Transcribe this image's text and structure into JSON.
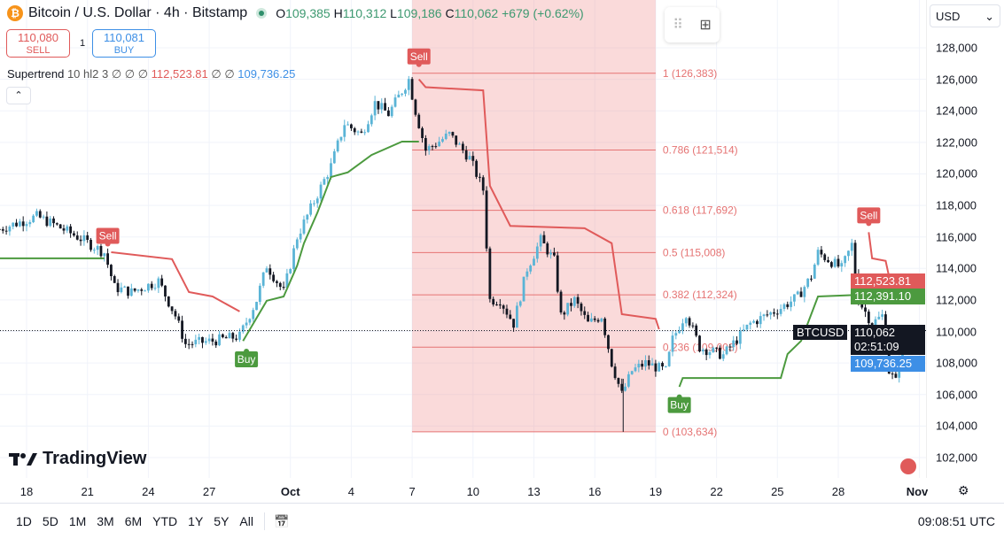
{
  "header": {
    "symbol_title": "Bitcoin / U.S. Dollar · 4h · Bitstamp",
    "open_label": "O",
    "open": "109,385",
    "high_label": "H",
    "high": "110,312",
    "low_label": "L",
    "low": "109,186",
    "close_label": "C",
    "close": "110,062",
    "change": "+679 (+0.62%)",
    "logo_glyph": "₿"
  },
  "trade": {
    "sell_price": "110,080",
    "sell_label": "SELL",
    "spread": "1",
    "buy_price": "110,081",
    "buy_label": "BUY"
  },
  "indicator": {
    "name": "Supertrend",
    "params": "10 hl2 3",
    "na": "∅ ∅ ∅",
    "upper": "112,523.81",
    "na2": "∅ ∅",
    "lower": "109,736.25",
    "collapse_glyph": "⌃"
  },
  "widget": {
    "drag_glyph": "⠿",
    "add_glyph": "⊞"
  },
  "currency": {
    "label": "USD",
    "caret": "⌄"
  },
  "price_axis": {
    "labels": [
      "128,000",
      "126,000",
      "124,000",
      "122,000",
      "120,000",
      "118,000",
      "116,000",
      "114,000",
      "112,000",
      "110,000",
      "108,000",
      "106,000",
      "104,000",
      "102,000"
    ],
    "tags": {
      "supertrend_upper": "112,523.81",
      "supertrend_lower_prev": "112,391.10",
      "last_price": "110,062",
      "countdown": "02:51:09",
      "supertrend_lower": "109,736.25",
      "symbol": "BTCUSD"
    }
  },
  "time_axis": {
    "labels": [
      {
        "t": "18",
        "d": "09-18 00"
      },
      {
        "t": "21",
        "d": "09-21 00"
      },
      {
        "t": "24",
        "d": "09-24 00"
      },
      {
        "t": "27",
        "d": "09-27 00"
      },
      {
        "t": "Oct",
        "d": "10-01 00"
      },
      {
        "t": "4",
        "d": "10-04 00"
      },
      {
        "t": "7",
        "d": "10-07 00"
      },
      {
        "t": "10",
        "d": "10-10 00"
      },
      {
        "t": "13",
        "d": "10-13 00"
      },
      {
        "t": "16",
        "d": "10-16 00"
      },
      {
        "t": "19",
        "d": "10-19 00"
      },
      {
        "t": "22",
        "d": "10-22 00"
      },
      {
        "t": "25",
        "d": "10-25 00"
      },
      {
        "t": "28",
        "d": "10-28 00"
      },
      {
        "t": "Nov",
        "d": "11-01 00"
      }
    ],
    "settings_glyph": "⚙"
  },
  "bottom_bar": {
    "ranges": [
      "1D",
      "5D",
      "1M",
      "3M",
      "6M",
      "YTD",
      "1Y",
      "5Y",
      "All"
    ],
    "goto_glyph": "📅",
    "clock": "09:08:51 UTC"
  },
  "branding": {
    "logo_text": "TradingView"
  },
  "colors": {
    "up": "#5ab4d6",
    "down": "#131722",
    "bear": "#e05a5a",
    "bull": "#4c9a3f",
    "fib": "#e57373",
    "fib_fill": "rgba(240,150,150,0.35)",
    "blue": "#3d8fe6"
  },
  "chart_data": {
    "type": "candlestick",
    "price_range": [
      102000,
      128000
    ],
    "price_path": [
      [
        "09-16 16",
        116500
      ],
      [
        "09-18 12",
        117300
      ],
      [
        "09-19 08",
        116800
      ],
      [
        "09-20 16",
        115900
      ],
      [
        "09-21 20",
        115000
      ],
      [
        "09-22 08",
        112800
      ],
      [
        "09-23 04",
        112500
      ],
      [
        "09-24 12",
        113200
      ],
      [
        "09-25 08",
        111000
      ],
      [
        "09-25 20",
        109200
      ],
      [
        "09-27 04",
        109400
      ],
      [
        "09-28 12",
        109700
      ],
      [
        "09-29 08",
        112000
      ],
      [
        "09-29 20",
        114200
      ],
      [
        "09-30 16",
        112500
      ],
      [
        "10-01 08",
        116000
      ],
      [
        "10-02 08",
        118700
      ],
      [
        "10-03 00",
        120500
      ],
      [
        "10-03 16",
        123200
      ],
      [
        "10-04 12",
        122500
      ],
      [
        "10-05 04",
        124500
      ],
      [
        "10-05 20",
        123800
      ],
      [
        "10-06 20",
        126000
      ],
      [
        "10-07 04",
        124000
      ],
      [
        "10-07 16",
        121500
      ],
      [
        "10-08 20",
        122500
      ],
      [
        "10-09 20",
        121000
      ],
      [
        "10-10 12",
        119000
      ],
      [
        "10-10 20",
        112000
      ],
      [
        "10-11 08",
        112000
      ],
      [
        "10-12 00",
        110500
      ],
      [
        "10-12 16",
        114000
      ],
      [
        "10-13 08",
        115800
      ],
      [
        "10-14 00",
        114500
      ],
      [
        "10-14 08",
        111000
      ],
      [
        "10-15 00",
        112000
      ],
      [
        "10-15 16",
        110500
      ],
      [
        "10-16 08",
        111000
      ],
      [
        "10-16 20",
        108000
      ],
      [
        "10-17 08",
        106000
      ],
      [
        "10-17 20",
        107500
      ],
      [
        "10-18 12",
        108000
      ],
      [
        "10-19 12",
        107500
      ],
      [
        "10-19 20",
        109500
      ],
      [
        "10-20 12",
        111200
      ],
      [
        "10-21 04",
        109000
      ],
      [
        "10-22 08",
        108500
      ],
      [
        "10-23 16",
        110500
      ],
      [
        "10-25 04",
        111500
      ],
      [
        "10-26 00",
        112200
      ],
      [
        "10-26 16",
        113500
      ],
      [
        "10-27 00",
        115000
      ],
      [
        "10-28 04",
        114000
      ],
      [
        "10-28 16",
        115500
      ],
      [
        "10-29 00",
        112000
      ],
      [
        "10-29 16",
        110500
      ],
      [
        "10-30 04",
        111000
      ],
      [
        "10-30 12",
        107500
      ],
      [
        "10-30 20",
        106800
      ],
      [
        "10-31 04",
        110062
      ]
    ],
    "supertrend": [
      {
        "trend": "up",
        "points": [
          [
            "09-16 16",
            114640
          ],
          [
            "09-21 20",
            114640
          ]
        ]
      },
      {
        "trend": "down",
        "points": [
          [
            "09-22 04",
            115030
          ],
          [
            "09-25 04",
            114590
          ],
          [
            "09-26 00",
            112500
          ],
          [
            "09-27 04",
            112220
          ],
          [
            "09-28 12",
            111270
          ]
        ]
      },
      {
        "trend": "up",
        "points": [
          [
            "09-28 16",
            109400
          ],
          [
            "09-29 20",
            111950
          ],
          [
            "09-30 16",
            112220
          ],
          [
            "10-01 08",
            114180
          ],
          [
            "10-01 16",
            115590
          ],
          [
            "10-02 08",
            117550
          ],
          [
            "10-03 00",
            119800
          ],
          [
            "10-03 20",
            120100
          ],
          [
            "10-05 00",
            121200
          ],
          [
            "10-06 12",
            122050
          ],
          [
            "10-07 08",
            122050
          ]
        ]
      },
      {
        "trend": "down",
        "points": [
          [
            "10-07 08",
            126000
          ],
          [
            "10-07 16",
            125500
          ],
          [
            "10-10 12",
            125300
          ],
          [
            "10-10 20",
            119240
          ],
          [
            "10-11 20",
            116700
          ],
          [
            "10-15 12",
            116550
          ],
          [
            "10-16 20",
            115600
          ],
          [
            "10-17 08",
            111100
          ],
          [
            "10-19 00",
            110800
          ],
          [
            "10-19 04",
            110140
          ]
        ]
      },
      {
        "trend": "up",
        "points": [
          [
            "10-20 04",
            106490
          ],
          [
            "10-20 08",
            107050
          ],
          [
            "10-25 04",
            107050
          ],
          [
            "10-25 12",
            108570
          ],
          [
            "10-26 04",
            109400
          ],
          [
            "10-27 00",
            112220
          ],
          [
            "10-29 04",
            112330
          ]
        ]
      },
      {
        "trend": "down",
        "points": [
          [
            "10-29 12",
            116300
          ],
          [
            "10-29 16",
            114640
          ],
          [
            "10-30 08",
            114480
          ],
          [
            "10-30 16",
            112500
          ],
          [
            "10-31 04",
            112523.81
          ]
        ]
      }
    ],
    "signals": [
      {
        "label": "Sell",
        "d": "09-22 00",
        "p": 115000
      },
      {
        "label": "Buy",
        "d": "09-28 20",
        "p": 109300
      },
      {
        "label": "Sell",
        "d": "10-07 08",
        "p": 126383
      },
      {
        "label": "Buy",
        "d": "10-20 04",
        "p": 106400
      },
      {
        "label": "Sell",
        "d": "10-29 12",
        "p": 116300
      }
    ],
    "fibonacci": {
      "from": "10-07 00",
      "to": "10-19 00",
      "levels": [
        {
          "label": "1 (126,383)",
          "p": 126383
        },
        {
          "label": "0.786 (121,514)",
          "p": 121514
        },
        {
          "label": "0.618 (117,692)",
          "p": 117692
        },
        {
          "label": "0.5 (115,008)",
          "p": 115008
        },
        {
          "label": "0.382 (112,324)",
          "p": 112324
        },
        {
          "label": "0.236 (109,003)",
          "p": 109003
        },
        {
          "label": "0 (103,634)",
          "p": 103634
        }
      ]
    },
    "last_price": 110062
  }
}
